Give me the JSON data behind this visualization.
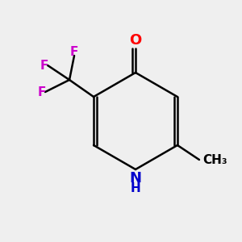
{
  "background_color": "#efefef",
  "bond_color": "#000000",
  "bond_width": 1.8,
  "atom_colors": {
    "O": "#ff0000",
    "N": "#0000cc",
    "H": "#000000",
    "F": "#cc00cc",
    "C": "#000000"
  },
  "font_size_atoms": 13,
  "font_size_small": 11
}
